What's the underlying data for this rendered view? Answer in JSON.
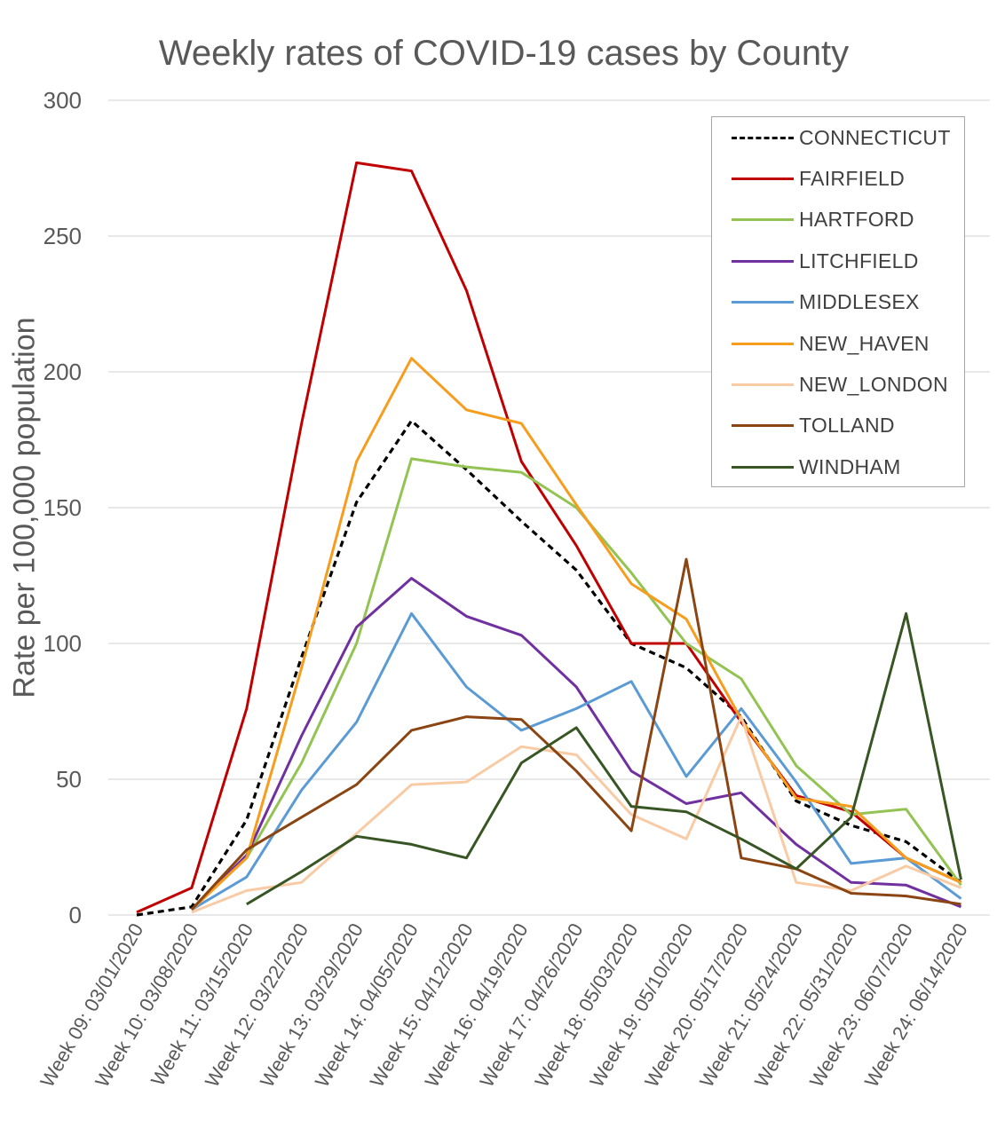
{
  "chart_data": {
    "type": "line",
    "title": "Weekly rates of COVID-19 cases by County",
    "xlabel": "",
    "ylabel": "Rate per 100,000 population",
    "ylim": [
      0,
      300
    ],
    "yticks": [
      0,
      50,
      100,
      150,
      200,
      250,
      300
    ],
    "grid": true,
    "legend_position": "top-right",
    "categories": [
      "Week 09: 03/01/2020",
      "Week 10: 03/08/2020",
      "Week 11: 03/15/2020",
      "Week 12: 03/22/2020",
      "Week 13: 03/29/2020",
      "Week 14: 04/05/2020",
      "Week 15: 04/12/2020",
      "Week 16: 04/19/2020",
      "Week 17: 04/26/2020",
      "Week 18: 05/03/2020",
      "Week 19: 05/10/2020",
      "Week 20: 05/17/2020",
      "Week 21: 05/24/2020",
      "Week 22: 05/31/2020",
      "Week 23: 06/07/2020",
      "Week 24: 06/14/2020"
    ],
    "series": [
      {
        "name": "CONNECTICUT",
        "color": "#000000",
        "dashed": true,
        "values": [
          0,
          3,
          35,
          95,
          152,
          182,
          164,
          145,
          127,
          100,
          91,
          73,
          42,
          33,
          27,
          12
        ]
      },
      {
        "name": "FAIRFIELD",
        "color": "#c00000",
        "dashed": false,
        "values": [
          1,
          10,
          76,
          181,
          277,
          274,
          230,
          167,
          136,
          100,
          100,
          71,
          44,
          38,
          21,
          12
        ]
      },
      {
        "name": "HARTFORD",
        "color": "#92c353",
        "dashed": false,
        "values": [
          null,
          2,
          21,
          56,
          100,
          168,
          165,
          163,
          150,
          126,
          100,
          87,
          55,
          37,
          39,
          11
        ]
      },
      {
        "name": "LITCHFIELD",
        "color": "#7030a0",
        "dashed": false,
        "values": [
          null,
          2,
          22,
          66,
          106,
          124,
          110,
          103,
          84,
          53,
          41,
          45,
          26,
          12,
          11,
          3
        ]
      },
      {
        "name": "MIDDLESEX",
        "color": "#5b9bd5",
        "dashed": false,
        "values": [
          null,
          2,
          14,
          46,
          71,
          111,
          84,
          68,
          76,
          86,
          51,
          76,
          49,
          19,
          21,
          6
        ]
      },
      {
        "name": "NEW_HAVEN",
        "color": "#f79d1e",
        "dashed": false,
        "values": [
          null,
          2,
          21,
          91,
          167,
          205,
          186,
          181,
          151,
          122,
          109,
          72,
          43,
          40,
          21,
          12
        ]
      },
      {
        "name": "NEW_LONDON",
        "color": "#f8cba5",
        "dashed": false,
        "values": [
          null,
          1,
          9,
          12,
          30,
          48,
          49,
          62,
          59,
          37,
          28,
          73,
          12,
          9,
          18,
          10
        ]
      },
      {
        "name": "TOLLAND",
        "color": "#8b4513",
        "dashed": false,
        "values": [
          null,
          2,
          24,
          36,
          48,
          68,
          73,
          72,
          53,
          31,
          131,
          21,
          17,
          8,
          7,
          4
        ]
      },
      {
        "name": "WINDHAM",
        "color": "#375623",
        "dashed": false,
        "values": [
          null,
          null,
          4,
          16,
          29,
          26,
          21,
          56,
          69,
          40,
          38,
          28,
          17,
          36,
          111,
          13
        ]
      }
    ]
  }
}
